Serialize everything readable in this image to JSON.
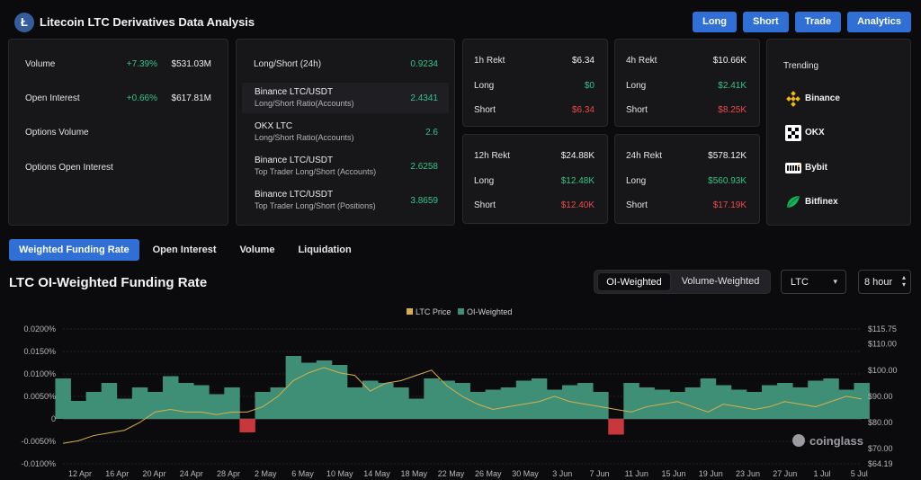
{
  "header": {
    "title": "Litecoin LTC Derivatives Data Analysis",
    "nav": [
      "Long",
      "Short",
      "Trade",
      "Analytics"
    ]
  },
  "overview": [
    {
      "label": "Volume",
      "change": "+7.39%",
      "value": "$531.03M"
    },
    {
      "label": "Open Interest",
      "change": "+0.66%",
      "value": "$617.81M"
    },
    {
      "label": "Options Volume",
      "change": "",
      "value": ""
    },
    {
      "label": "Options Open Interest",
      "change": "",
      "value": ""
    }
  ],
  "long_short": {
    "title": "Long/Short (24h)",
    "title_value": "0.9234",
    "rows": [
      {
        "name": "Binance LTC/USDT",
        "sub": "Long/Short Ratio(Accounts)",
        "value": "2.4341"
      },
      {
        "name": "OKX LTC",
        "sub": "Long/Short Ratio(Accounts)",
        "value": "2.6"
      },
      {
        "name": "Binance LTC/USDT",
        "sub": "Top Trader Long/Short (Accounts)",
        "value": "2.6258"
      },
      {
        "name": "Binance LTC/USDT",
        "sub": "Top Trader Long/Short (Positions)",
        "value": "3.8659"
      }
    ]
  },
  "rekt": [
    {
      "period": "1h Rekt",
      "total": "$6.34",
      "long_label": "Long",
      "long": "$0",
      "short_label": "Short",
      "short": "$6.34"
    },
    {
      "period": "4h Rekt",
      "total": "$10.66K",
      "long_label": "Long",
      "long": "$2.41K",
      "short_label": "Short",
      "short": "$8.25K"
    },
    {
      "period": "12h Rekt",
      "total": "$24.88K",
      "long_label": "Long",
      "long": "$12.48K",
      "short_label": "Short",
      "short": "$12.40K"
    },
    {
      "period": "24h Rekt",
      "total": "$578.12K",
      "long_label": "Long",
      "long": "$560.93K",
      "short_label": "Short",
      "short": "$17.19K"
    }
  ],
  "trending": {
    "title": "Trending",
    "exchanges": [
      "Binance",
      "OKX",
      "Bybit",
      "Bitfinex"
    ]
  },
  "tabs": [
    "Weighted Funding Rate",
    "Open Interest",
    "Volume",
    "Liquidation"
  ],
  "section_title": "LTC OI-Weighted Funding Rate",
  "weighting": {
    "options": [
      "OI-Weighted",
      "Volume-Weighted"
    ],
    "selected": "OI-Weighted"
  },
  "symbol_select": "LTC",
  "interval_select": "8 hour",
  "watermark": "coinglass",
  "colors": {
    "accent": "#2f6fd6",
    "positive": "#38c389",
    "negative": "#ea4a4a",
    "price": "#d8b04a",
    "area": "#3e8f76"
  },
  "chart_data": {
    "type": "area",
    "legend": [
      "LTC Price",
      "OI-Weighted"
    ],
    "legend_position": "top-center",
    "x_ticks": [
      "12 Apr",
      "16 Apr",
      "20 Apr",
      "24 Apr",
      "28 Apr",
      "2 May",
      "6 May",
      "10 May",
      "14 May",
      "18 May",
      "22 May",
      "26 May",
      "30 May",
      "3 Jun",
      "7 Jun",
      "11 Jun",
      "15 Jun",
      "19 Jun",
      "23 Jun",
      "27 Jun",
      "1 Jul",
      "5 Jul"
    ],
    "y_left_ticks": [
      "0.0200%",
      "0.0150%",
      "0.0100%",
      "0.0050%",
      "0",
      "-0.0050%",
      "-0.0100%"
    ],
    "y_left_range": [
      -0.01,
      0.02
    ],
    "y_right_ticks": [
      "$115.75",
      "$110.00",
      "$100.00",
      "$90.00",
      "$80.00",
      "$70.00",
      "$64.19"
    ],
    "y_right_range": [
      64.19,
      115.75
    ],
    "funding_rate_pct": [
      0.009,
      0.004,
      0.006,
      0.008,
      0.0045,
      0.007,
      0.006,
      0.0095,
      0.008,
      0.0075,
      0.0055,
      0.007,
      -0.003,
      0.006,
      0.007,
      0.014,
      0.0125,
      0.013,
      0.012,
      0.007,
      0.0085,
      0.008,
      0.007,
      0.0045,
      0.009,
      0.0085,
      0.008,
      0.006,
      0.0065,
      0.007,
      0.0085,
      0.009,
      0.0065,
      0.0075,
      0.008,
      0.006,
      -0.0035,
      0.008,
      0.007,
      0.0065,
      0.006,
      0.007,
      0.009,
      0.0075,
      0.0065,
      0.006,
      0.0075,
      0.008,
      0.007,
      0.0085,
      0.009,
      0.0065,
      0.008
    ],
    "ltc_price_usd": [
      72,
      73,
      75,
      76,
      77,
      80,
      84,
      85,
      84,
      84,
      83,
      84,
      84,
      86,
      90,
      96,
      99,
      101,
      99,
      98,
      92,
      95,
      96,
      98,
      100,
      94,
      90,
      87,
      85,
      86,
      87,
      88,
      90,
      88,
      87,
      86,
      85,
      84,
      86,
      87,
      88,
      86,
      84,
      87,
      86,
      85,
      86,
      88,
      87,
      86,
      88,
      90,
      89
    ]
  }
}
